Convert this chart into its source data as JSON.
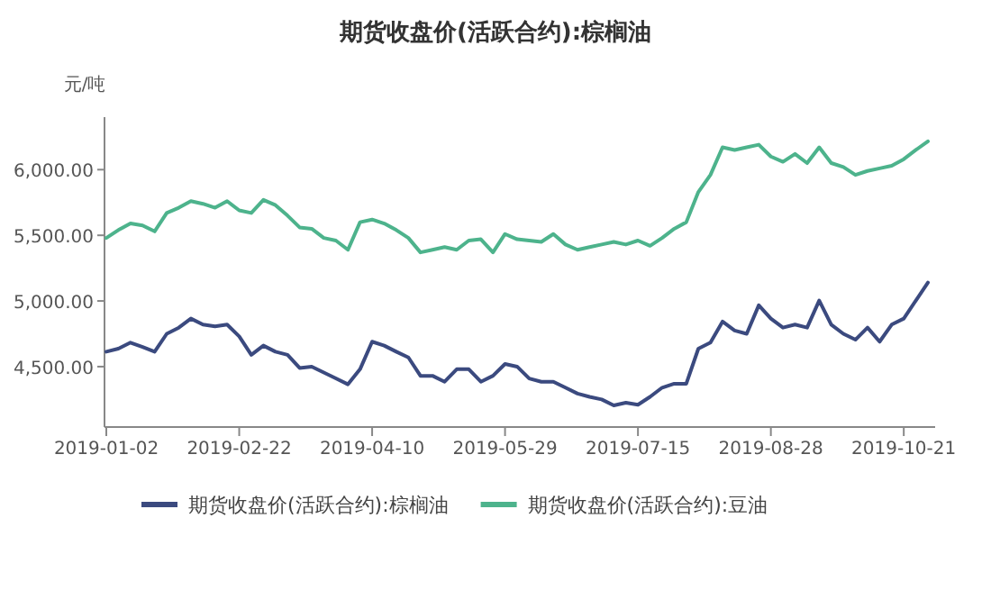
{
  "chart_data": {
    "type": "line",
    "title": "期货收盘价(活跃合约):棕榈油",
    "ylabel": "元/吨",
    "categories": [
      "2019-01-02",
      null,
      null,
      null,
      null,
      null,
      null,
      null,
      null,
      null,
      null,
      "2019-02-22",
      null,
      null,
      null,
      null,
      null,
      null,
      null,
      null,
      null,
      null,
      "2019-04-10",
      null,
      null,
      null,
      null,
      null,
      null,
      null,
      null,
      null,
      null,
      "2019-05-29",
      null,
      null,
      null,
      null,
      null,
      null,
      null,
      null,
      null,
      null,
      "2019-07-15",
      null,
      null,
      null,
      null,
      null,
      null,
      null,
      null,
      null,
      null,
      "2019-08-28",
      null,
      null,
      null,
      null,
      null,
      null,
      null,
      null,
      null,
      null,
      "2019-10-21",
      null,
      null
    ],
    "series": [
      {
        "name": "期货收盘价(活跃合约):棕榈油",
        "color": "#3b4a7f",
        "values": [
          4614,
          4637,
          4683,
          4650,
          4614,
          4750,
          4797,
          4866,
          4820,
          4806,
          4820,
          4730,
          4590,
          4660,
          4614,
          4590,
          4490,
          4500,
          4455,
          4410,
          4365,
          4480,
          4690,
          4660,
          4614,
          4570,
          4430,
          4430,
          4385,
          4480,
          4480,
          4385,
          4430,
          4520,
          4500,
          4410,
          4385,
          4385,
          4340,
          4295,
          4270,
          4250,
          4205,
          4225,
          4210,
          4270,
          4340,
          4370,
          4370,
          4637,
          4683,
          4843,
          4775,
          4750,
          4967,
          4866,
          4797,
          4820,
          4797,
          5003,
          4820,
          4750,
          4705,
          4797,
          4690,
          4820,
          4866,
          5003,
          5140
        ]
      },
      {
        "name": "期货收盘价(活跃合约):豆油",
        "color": "#4db38c",
        "values": [
          5480,
          5540,
          5590,
          5575,
          5530,
          5670,
          5710,
          5760,
          5740,
          5710,
          5760,
          5690,
          5670,
          5770,
          5730,
          5650,
          5560,
          5550,
          5480,
          5460,
          5390,
          5600,
          5620,
          5590,
          5540,
          5480,
          5370,
          5390,
          5410,
          5390,
          5460,
          5470,
          5370,
          5510,
          5470,
          5460,
          5450,
          5510,
          5430,
          5390,
          5410,
          5430,
          5450,
          5430,
          5460,
          5420,
          5480,
          5550,
          5600,
          5830,
          5960,
          6170,
          6150,
          6170,
          6190,
          6100,
          6060,
          6120,
          6050,
          6170,
          6050,
          6020,
          5960,
          5990,
          6010,
          6030,
          6080,
          6150,
          6215
        ]
      }
    ],
    "ylim": [
      4040,
      6400
    ],
    "yticks": [
      {
        "value": 4500,
        "label": "4,500.00"
      },
      {
        "value": 5000,
        "label": "5,000.00"
      },
      {
        "value": 5500,
        "label": "5,500.00"
      },
      {
        "value": 6000,
        "label": "6,000.00"
      }
    ],
    "grid": false,
    "legend": "bottom",
    "marker": "none",
    "line_style": "solid"
  }
}
